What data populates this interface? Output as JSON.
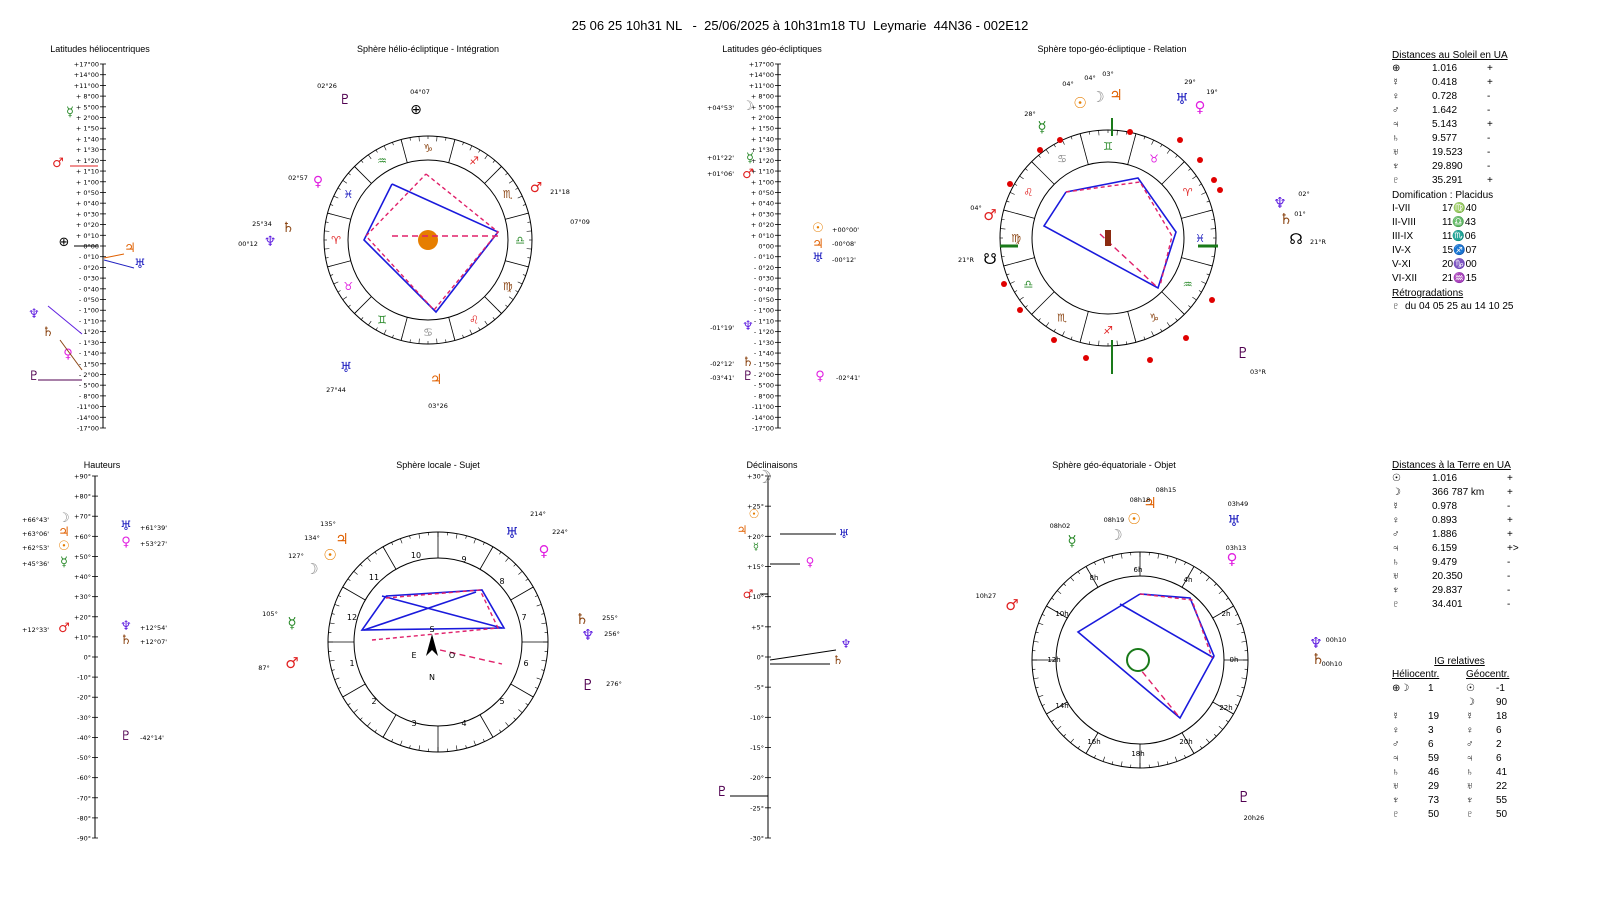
{
  "title": "25 06 25 10h31 NL   -  25/06/2025 à 10h31m18 TU  Leymarie  44N36 - 002E12",
  "panels": {
    "helio_lat": "Latitudes héliocentriques",
    "helio_sphere": "Sphère hélio-écliptique - Intégration",
    "geo_lat": "Latitudes géo-écliptiques",
    "topo_sphere": "Sphère topo-géo-écliptique - Relation",
    "heights": "Hauteurs",
    "local_sphere": "Sphère locale - Sujet",
    "declinations": "Déclinaisons",
    "geoeq_sphere": "Sphère géo-équatoriale - Objet"
  },
  "colors": {
    "sun": "#e67e00",
    "moon": "#888888",
    "mercury": "#2a8a2a",
    "venus": "#e020e0",
    "mars": "#e02020",
    "jupiter": "#e06000",
    "saturn": "#8b4513",
    "uranus": "#2020c0",
    "neptune": "#6020e0",
    "pluto": "#500050",
    "blue_line": "#1a1adc",
    "red_dash": "#e0206a"
  },
  "lat_scale": [
    "+17°00",
    "+14°00",
    "+11°00",
    "+ 8°00",
    "+ 5°00",
    "+ 2°00",
    "+ 1°50",
    "+ 1°40",
    "+ 1°30",
    "+ 1°20",
    "+ 1°10",
    "+ 1°00",
    "+ 0°50",
    "+ 0°40",
    "+ 0°30",
    "+ 0°20",
    "+ 0°10",
    "0°00",
    "- 0°10",
    "- 0°20",
    "- 0°30",
    "- 0°40",
    "- 0°50",
    "- 1°00",
    "- 1°10",
    "- 1°20",
    "- 1°30",
    "- 1°40",
    "- 1°50",
    "- 2°00",
    "- 5°00",
    "- 8°00",
    "-11°00",
    "-14°00",
    "-17°00"
  ],
  "height_scale": [
    "+90°",
    "+80°",
    "+70°",
    "+60°",
    "+50°",
    "+40°",
    "+30°",
    "+20°",
    "+10°",
    "0°",
    "-10°",
    "-20°",
    "-30°",
    "-40°",
    "-50°",
    "-60°",
    "-70°",
    "-80°",
    "-90°"
  ],
  "decl_scale": [
    "+30°",
    "+25°",
    "+20°",
    "+15°",
    "+10°",
    "+5°",
    "0°",
    "-5°",
    "-10°",
    "-15°",
    "-20°",
    "-25°",
    "-30°"
  ],
  "geo_lat_labels": [
    "+04°53'",
    "+01°22'",
    "+01°06'",
    "+00°00'",
    "-00°08'",
    "-00°12'",
    "-01°19'",
    "-02°12'",
    "-03°41'",
    "-02°41'"
  ],
  "height_labels": [
    "+66°43'",
    "+63°06'",
    "+62°53'",
    "+45°36'",
    "+61°39'",
    "+53°27'",
    "+12°33'",
    "+12°54'",
    "+12°07'",
    "-42°14'"
  ],
  "helio_wheel_labels": [
    "02°26",
    "04°07",
    "02°57",
    "21°18",
    "07°09",
    "25°34",
    "00°12",
    "27°44",
    "03°26"
  ],
  "topo_wheel_labels": [
    "04°",
    "04°",
    "03°",
    "29°",
    "19°",
    "28°",
    "02°",
    "01°",
    "04°",
    "21°R",
    "21°R",
    "03°R"
  ],
  "local_wheel_labels": [
    "135°",
    "134°",
    "127°",
    "214°",
    "224°",
    "105°",
    "255°",
    "256°",
    "87°",
    "276°"
  ],
  "local_houses": [
    "10",
    "9",
    "11",
    "8",
    "12",
    "7",
    "1",
    "6",
    "2",
    "5",
    "3",
    "4"
  ],
  "compass": {
    "n": "N",
    "s": "S",
    "e": "E",
    "o": "O"
  },
  "geoeq_labels": [
    "08h15",
    "08h18",
    "08h02",
    "08h19",
    "03h49",
    "03h13",
    "10h27",
    "00h10",
    "00h10",
    "20h26"
  ],
  "geoeq_hours": [
    "6h",
    "4h",
    "8h",
    "2h",
    "10h",
    "0h",
    "12h",
    "22h",
    "14h",
    "20h",
    "16h",
    "18h"
  ],
  "dist_sun": {
    "title": "Distances au Soleil en UA",
    "rows": [
      [
        "⊕",
        "1.016",
        "+"
      ],
      [
        "☿",
        "0.418",
        "+"
      ],
      [
        "♀",
        "0.728",
        "-"
      ],
      [
        "♂",
        "1.642",
        "-"
      ],
      [
        "♃",
        "5.143",
        "+"
      ],
      [
        "♄",
        "9.577",
        "-"
      ],
      [
        "♅",
        "19.523",
        "-"
      ],
      [
        "♆",
        "29.890",
        "-"
      ],
      [
        "♇",
        "35.291",
        "+"
      ]
    ]
  },
  "domification": {
    "title": "Domification : Placidus",
    "rows": [
      [
        "I-VII",
        "17♍40"
      ],
      [
        "II-VIII",
        "11♎43"
      ],
      [
        "III-IX",
        "11♏06"
      ],
      [
        "IV-X",
        "15♐07"
      ],
      [
        "V-XI",
        "20♑00"
      ],
      [
        "VI-XII",
        "21♒15"
      ]
    ]
  },
  "retro": {
    "title": "Rétrogradations",
    "row": "♇  du 04 05 25 au 14 10 25"
  },
  "dist_earth": {
    "title": "Distances à la Terre en UA",
    "rows": [
      [
        "☉",
        "1.016",
        "+"
      ],
      [
        "☽",
        "366 787 km",
        "+"
      ],
      [
        "☿",
        "0.978",
        "-"
      ],
      [
        "♀",
        "0.893",
        "+"
      ],
      [
        "♂",
        "1.886",
        "+"
      ],
      [
        "♃",
        "6.159",
        "+>"
      ],
      [
        "♄",
        "9.479",
        "-"
      ],
      [
        "♅",
        "20.350",
        "-"
      ],
      [
        "♆",
        "29.837",
        "-"
      ],
      [
        "♇",
        "34.401",
        "-"
      ]
    ]
  },
  "ig": {
    "title": "IG relatives",
    "col1": "Héliocentr.",
    "col2": "Géocentr.",
    "rows": [
      [
        "⊕☽",
        "1",
        "☉",
        "-1"
      ],
      [
        "",
        "",
        "☽",
        "90"
      ],
      [
        "☿",
        "19",
        "☿",
        "18"
      ],
      [
        "♀",
        "3",
        "♀",
        "6"
      ],
      [
        "♂",
        "6",
        "♂",
        "2"
      ],
      [
        "♃",
        "59",
        "♃",
        "6"
      ],
      [
        "♄",
        "46",
        "♄",
        "41"
      ],
      [
        "♅",
        "29",
        "♅",
        "22"
      ],
      [
        "♆",
        "73",
        "♆",
        "55"
      ],
      [
        "♇",
        "50",
        "♇",
        "50"
      ]
    ]
  }
}
